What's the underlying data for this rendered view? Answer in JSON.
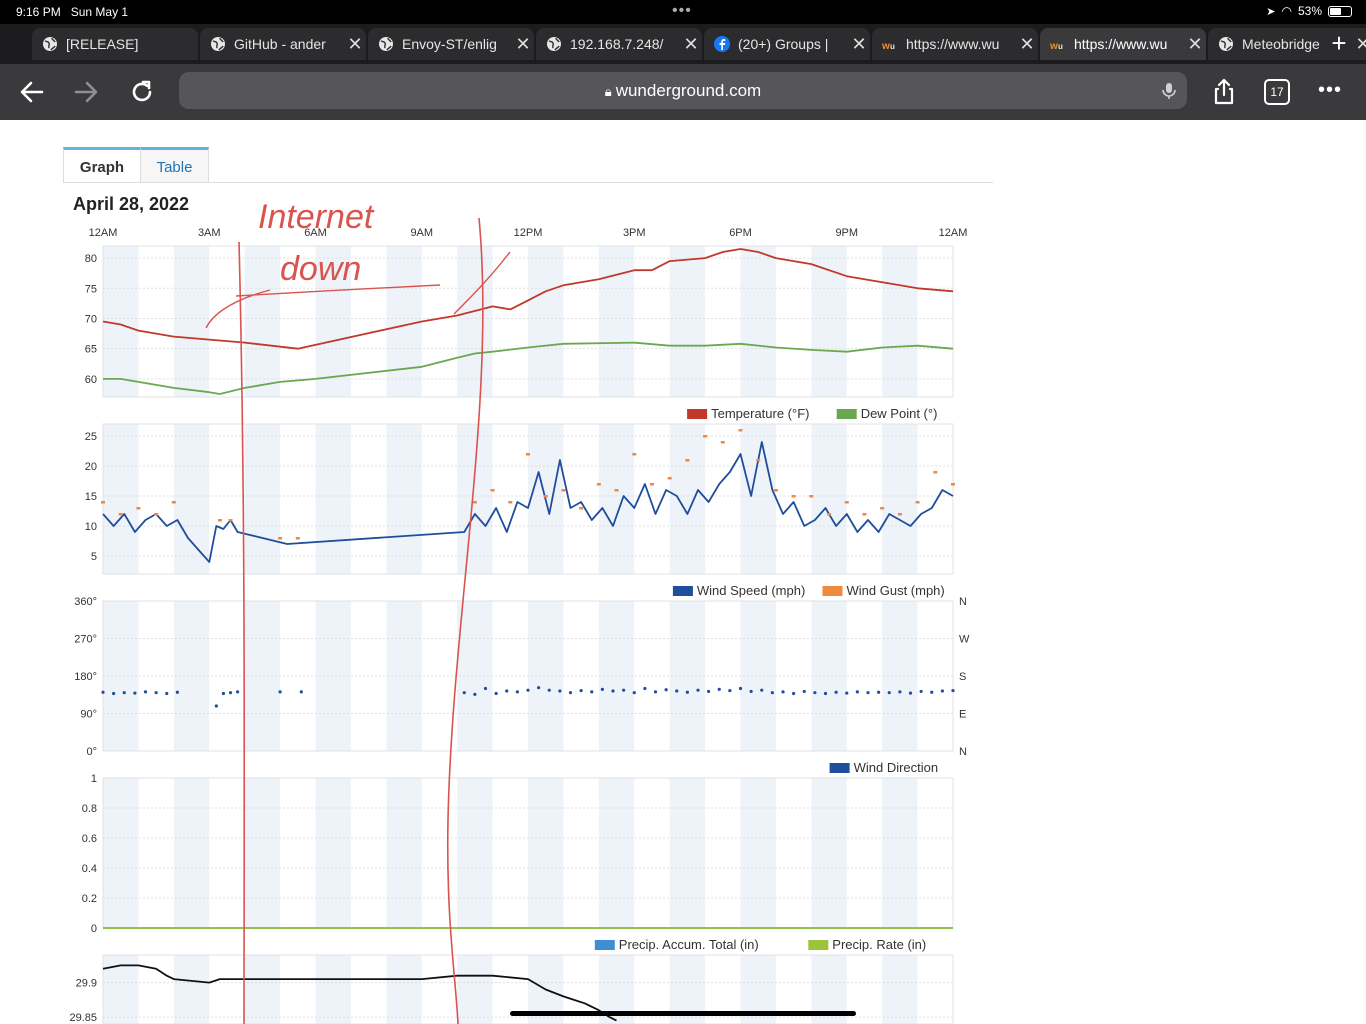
{
  "status_bar": {
    "time": "9:16 PM",
    "date": "Sun May 1",
    "battery": "53%",
    "battery_level": 0.53
  },
  "tabs": [
    {
      "label": "[RELEASE]",
      "favicon": "globe-icon",
      "closable": false
    },
    {
      "label": "GitHub - ander",
      "favicon": "globe-icon",
      "closable": true
    },
    {
      "label": "Envoy-ST/enlig",
      "favicon": "globe-icon",
      "closable": true
    },
    {
      "label": "192.168.7.248/",
      "favicon": "globe-icon",
      "closable": true
    },
    {
      "label": "(20+) Groups |",
      "favicon": "facebook-icon",
      "closable": true
    },
    {
      "label": "https://www.wu",
      "favicon": "wunderground-icon",
      "closable": true
    },
    {
      "label": "https://www.wu",
      "favicon": "wunderground-icon",
      "closable": true,
      "active": true
    },
    {
      "label": "Meteobridge",
      "favicon": "globe-icon",
      "closable": true
    }
  ],
  "toolbar": {
    "url": "wunderground.com",
    "tab_count": "17"
  },
  "page": {
    "tab_graph": "Graph",
    "tab_table": "Table",
    "date": "April 28, 2022",
    "annotation": "Internet down",
    "time_labels": [
      "12AM",
      "3AM",
      "6AM",
      "9AM",
      "12PM",
      "3PM",
      "6PM",
      "9PM",
      "12AM"
    ]
  },
  "colors": {
    "temperature": "#c0392b",
    "dew_point": "#6aa84f",
    "wind_speed": "#1f4e9c",
    "wind_gust": "#f0883e",
    "precip_total": "#3d8fd1",
    "precip_rate": "#9bc43a",
    "pressure": "#111111",
    "annotation": "#d9534f",
    "band": "#eef3fa"
  },
  "chart_data": [
    {
      "type": "line",
      "panel": "temperature-dewpoint",
      "x_unit": "hour of day",
      "ylim": [
        57,
        82
      ],
      "y_ticks": [
        80,
        75,
        70,
        65,
        60
      ],
      "legend_position": "bottom-right",
      "series": [
        {
          "name": "Temperature (°F)",
          "x": [
            0,
            0.5,
            1,
            1.5,
            2,
            3,
            4,
            5.5,
            9,
            10,
            11,
            11.5,
            12,
            12.5,
            13,
            14,
            15,
            15.5,
            16,
            17,
            17.5,
            18,
            18.5,
            19,
            20,
            21,
            22,
            23,
            24
          ],
          "values": [
            69.5,
            69,
            68,
            67.5,
            67,
            66.5,
            66,
            65,
            69.5,
            70.5,
            72,
            71.5,
            73,
            74.5,
            75.5,
            76.5,
            78,
            78,
            79.5,
            80,
            81,
            81.5,
            81,
            80,
            79,
            77,
            76,
            75,
            74.5
          ]
        },
        {
          "name": "Dew Point (°)",
          "x": [
            0,
            0.5,
            1,
            1.5,
            2,
            3,
            3.3,
            4,
            5,
            6,
            9,
            10,
            10.5,
            11,
            12,
            13,
            15,
            16,
            17,
            18,
            19,
            20,
            21,
            22,
            23,
            24
          ],
          "values": [
            60,
            60,
            59.5,
            59,
            58.5,
            57.8,
            57.5,
            58.5,
            59.5,
            60,
            62,
            63.5,
            64.2,
            64.5,
            65.2,
            65.8,
            66,
            65.5,
            65.5,
            65.8,
            65.2,
            64.8,
            64.5,
            65.2,
            65.5,
            65
          ]
        }
      ]
    },
    {
      "type": "line",
      "panel": "wind",
      "x_unit": "hour of day",
      "ylim": [
        2,
        27
      ],
      "y_ticks": [
        25,
        20,
        15,
        10,
        5
      ],
      "legend_position": "bottom-right",
      "series": [
        {
          "name": "Wind Speed (mph)",
          "x": [
            0,
            0.3,
            0.6,
            0.9,
            1.2,
            1.5,
            1.8,
            2.1,
            2.4,
            2.7,
            3,
            3.2,
            3.4,
            3.6,
            3.8,
            5.2,
            10.2,
            10.5,
            10.8,
            11.1,
            11.4,
            11.7,
            12,
            12.3,
            12.6,
            12.9,
            13.2,
            13.5,
            13.8,
            14.1,
            14.4,
            14.7,
            15,
            15.3,
            15.6,
            15.9,
            16.2,
            16.5,
            16.8,
            17.1,
            17.4,
            17.7,
            18,
            18.3,
            18.6,
            18.9,
            19.2,
            19.5,
            19.8,
            20.1,
            20.4,
            20.7,
            21,
            21.3,
            21.6,
            21.9,
            22.2,
            22.5,
            22.8,
            23.1,
            23.4,
            23.7,
            24
          ],
          "values": [
            12,
            10,
            12,
            9,
            11,
            12,
            10,
            11,
            8,
            6,
            4,
            10,
            9.5,
            11,
            9,
            7,
            9,
            12,
            10,
            13,
            9,
            14,
            13,
            19,
            12,
            21,
            13,
            14,
            11,
            13,
            10,
            15,
            13,
            17,
            12,
            16,
            15,
            12,
            16,
            14,
            17,
            19,
            22,
            15,
            24,
            16,
            12,
            14,
            10,
            11,
            13,
            10,
            12,
            9,
            11,
            9,
            12,
            11,
            10,
            12,
            13,
            16,
            15
          ]
        },
        {
          "name": "Wind Gust (mph)",
          "x": [
            0,
            0.5,
            1,
            1.5,
            2,
            3.3,
            3.6,
            5,
            5.5,
            10.5,
            11,
            11.5,
            12,
            12.5,
            13,
            13.5,
            14,
            14.5,
            15,
            15.5,
            16,
            16.5,
            17,
            17.5,
            18,
            18.5,
            19,
            19.5,
            20,
            20.5,
            21,
            21.5,
            22,
            22.5,
            23,
            23.5,
            24
          ],
          "values": [
            14,
            12,
            13,
            12,
            14,
            11,
            11,
            8,
            8,
            14,
            16,
            14,
            22,
            15,
            16,
            13,
            17,
            16,
            22,
            17,
            18,
            21,
            25,
            24,
            26,
            21,
            16,
            15,
            15,
            12,
            14,
            12,
            13,
            12,
            14,
            19,
            17
          ]
        }
      ]
    },
    {
      "type": "scatter",
      "panel": "wind-direction",
      "x_unit": "hour of day",
      "ylim": [
        0,
        360
      ],
      "y_ticks": [
        "360°",
        "270°",
        "180°",
        "90°",
        "0°"
      ],
      "compass_ticks": [
        "N",
        "W",
        "S",
        "E",
        "N"
      ],
      "legend_position": "bottom-right",
      "series": [
        {
          "name": "Wind Direction",
          "x": [
            0,
            0.3,
            0.6,
            0.9,
            1.2,
            1.5,
            1.8,
            2.1,
            3.2,
            3.4,
            3.6,
            3.8,
            5,
            5.6,
            10.2,
            10.5,
            10.8,
            11.1,
            11.4,
            11.7,
            12,
            12.3,
            12.6,
            12.9,
            13.2,
            13.5,
            13.8,
            14.1,
            14.4,
            14.7,
            15,
            15.3,
            15.6,
            15.9,
            16.2,
            16.5,
            16.8,
            17.1,
            17.4,
            17.7,
            18,
            18.3,
            18.6,
            18.9,
            19.2,
            19.5,
            19.8,
            20.1,
            20.4,
            20.7,
            21,
            21.3,
            21.6,
            21.9,
            22.2,
            22.5,
            22.8,
            23.1,
            23.4,
            23.7,
            24
          ],
          "values": [
            141,
            138,
            140,
            139,
            142,
            140,
            138,
            141,
            108,
            138,
            140,
            142,
            142,
            142,
            140,
            136,
            150,
            138,
            144,
            142,
            146,
            152,
            146,
            144,
            140,
            145,
            142,
            148,
            144,
            146,
            140,
            150,
            142,
            147,
            144,
            141,
            146,
            143,
            148,
            145,
            150,
            143,
            146,
            140,
            142,
            138,
            143,
            140,
            138,
            141,
            139,
            142,
            140,
            141,
            140,
            142,
            139,
            143,
            141,
            144,
            145
          ]
        }
      ]
    },
    {
      "type": "line",
      "panel": "precipitation",
      "x_unit": "hour of day",
      "ylim": [
        0,
        1
      ],
      "y_ticks": [
        1,
        0.8,
        0.6,
        0.4,
        0.2,
        0
      ],
      "legend_position": "bottom-right",
      "series": [
        {
          "name": "Precip. Accum. Total (in)",
          "x": [
            0,
            24
          ],
          "values": [
            0,
            0
          ]
        },
        {
          "name": "Precip. Rate (in)",
          "x": [
            0,
            24
          ],
          "values": [
            0,
            0
          ]
        }
      ]
    },
    {
      "type": "line",
      "panel": "pressure",
      "x_unit": "hour of day",
      "ylim": [
        29.84,
        29.94
      ],
      "y_ticks": [
        29.9,
        29.85
      ],
      "series": [
        {
          "x": [
            0,
            0.5,
            1,
            1.5,
            1.8,
            2,
            3,
            3.3,
            4,
            9,
            10,
            11,
            12,
            12.5,
            13,
            13.3,
            13.6,
            14,
            14.3,
            14.5
          ],
          "values": [
            29.92,
            29.925,
            29.925,
            29.92,
            29.91,
            29.905,
            29.9,
            29.905,
            29.905,
            29.905,
            29.91,
            29.91,
            29.905,
            29.89,
            29.88,
            29.875,
            29.87,
            29.86,
            29.85,
            29.845
          ]
        }
      ]
    }
  ]
}
